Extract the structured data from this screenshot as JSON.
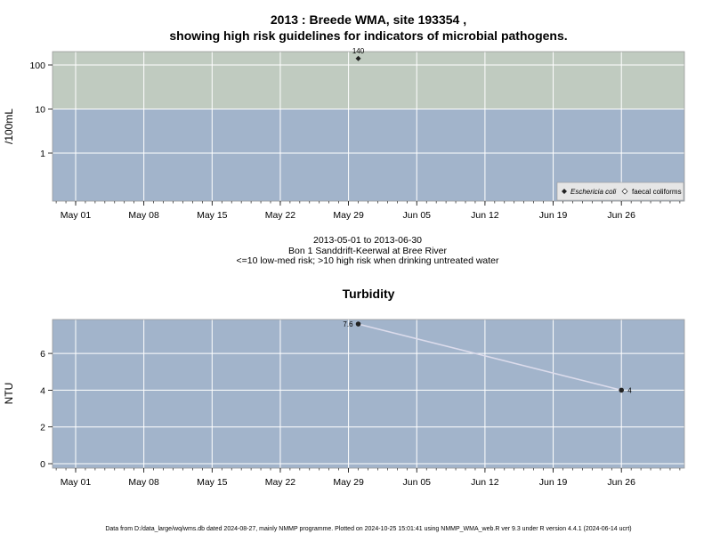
{
  "header": {
    "title_line1": "2013 : Breede WMA, site 193354 ,",
    "title_line2": "showing high risk guidelines for indicators of microbial pathogens."
  },
  "info": {
    "date_range": "2013-05-01 to 2013-06-30",
    "site_name": "Bon 1 Sanddrift-Keerwal at Bree River",
    "risk_note": "<=10 low-med risk; >10 high risk when drinking untreated water"
  },
  "footer": {
    "text": "Data from D:/data_large/wq/wms.db dated 2024-08-27, mainly NMMP programme. Plotted on 2024-10-25 15:01:41 using NMMP_WMA_web.R ver 9.3 under R version 4.4.1 (2024-06-14 ucrt)"
  },
  "colors": {
    "panel_low": "#a2b4cb",
    "panel_high": "#c0cbc0",
    "grid": "#ffffff",
    "line": "#dcdcec",
    "point": "#222222"
  },
  "chart_data": [
    {
      "type": "scatter",
      "title": "",
      "xlabel": "",
      "ylabel": "/100mL",
      "yscale": "log",
      "ylim": [
        0.1,
        200
      ],
      "yticks": [
        "1",
        "10",
        "100"
      ],
      "xlim": [
        "2013-04-26",
        "2013-07-05"
      ],
      "xticks": [
        "May 01",
        "May 08",
        "May 15",
        "May 22",
        "May 29",
        "Jun 05",
        "Jun 12",
        "Jun 19",
        "Jun 26"
      ],
      "threshold": {
        "value": 10,
        "below": "low-med risk",
        "above": "high risk"
      },
      "grid": true,
      "legend": {
        "position": "bottom-right",
        "entries": [
          {
            "label": "Eschericia coli",
            "marker": "filled-diamond"
          },
          {
            "label": "faecal coliforms",
            "marker": "open-diamond"
          }
        ]
      },
      "series": [
        {
          "name": "Eschericia coli",
          "points": [
            {
              "x": "2013-05-30",
              "y": 140,
              "label": "140"
            }
          ]
        },
        {
          "name": "faecal coliforms",
          "points": []
        }
      ]
    },
    {
      "type": "line",
      "title": "Turbidity",
      "xlabel": "",
      "ylabel": "NTU",
      "ylim": [
        -0.3,
        7.9
      ],
      "yticks": [
        "0",
        "2",
        "4",
        "6"
      ],
      "xlim": [
        "2013-04-26",
        "2013-07-05"
      ],
      "xticks": [
        "May 01",
        "May 08",
        "May 15",
        "May 22",
        "May 29",
        "Jun 05",
        "Jun 12",
        "Jun 19",
        "Jun 26"
      ],
      "grid": true,
      "series": [
        {
          "points": [
            {
              "x": "2013-05-30",
              "y": 7.6,
              "label": "7.6"
            },
            {
              "x": "2013-06-26",
              "y": 4,
              "label": "4"
            }
          ]
        }
      ]
    }
  ]
}
